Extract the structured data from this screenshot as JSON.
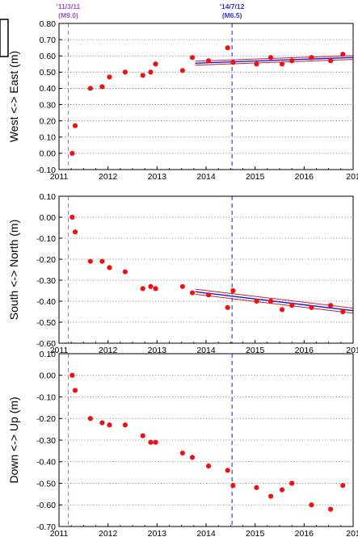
{
  "event_labels": [
    {
      "date": "'11/3/11",
      "mag": "(M9.0)",
      "color": "#9955cc",
      "x": 2011.19
    },
    {
      "date": "'14/7/12",
      "mag": "(M6.5)",
      "color": "#3333cc",
      "x": 2014.53
    }
  ],
  "colors": {
    "point": "#ee1111",
    "trend": "#1a1ad0",
    "trend_bound": "#cc1a3a",
    "event2": "#3344dd",
    "event1": "#bb55cc"
  },
  "chart_data": [
    {
      "type": "scatter",
      "ylabel": "West <-> East (m)",
      "ylim": [
        -0.1,
        0.8
      ],
      "yticks": [
        "-0.10",
        "0.00",
        "0.10",
        "0.20",
        "0.30",
        "0.40",
        "0.50",
        "0.60",
        "0.70",
        "0.80"
      ],
      "xlim": [
        2011,
        2017
      ],
      "xticks": [
        "2011",
        "2012",
        "2013",
        "2014",
        "2015",
        "2016",
        "201"
      ],
      "grid": "dotted",
      "points": {
        "x": [
          2011.27,
          2011.33,
          2011.64,
          2011.88,
          2012.03,
          2012.35,
          2012.71,
          2012.87,
          2012.97,
          2013.52,
          2013.72,
          2014.05,
          2014.44,
          2014.55,
          2015.03,
          2015.32,
          2015.55,
          2015.75,
          2016.15,
          2016.54,
          2016.79
        ],
        "y": [
          0.0,
          0.17,
          0.4,
          0.41,
          0.47,
          0.5,
          0.48,
          0.5,
          0.55,
          0.51,
          0.59,
          0.57,
          0.65,
          0.56,
          0.55,
          0.59,
          0.55,
          0.57,
          0.59,
          0.57,
          0.61
        ]
      },
      "trend": {
        "x": [
          2013.78,
          2017.0
        ],
        "y": [
          0.555,
          0.59
        ],
        "band": 0.012
      }
    },
    {
      "type": "scatter",
      "ylabel": "South <-> North (m)",
      "ylim": [
        -0.6,
        0.1
      ],
      "yticks": [
        "-0.60",
        "-0.50",
        "-0.40",
        "-0.30",
        "-0.20",
        "-0.10",
        "0.00",
        "0.10"
      ],
      "xlim": [
        2011,
        2017
      ],
      "xticks": [
        "2011",
        "2012",
        "2013",
        "2014",
        "2015",
        "2016",
        "201"
      ],
      "grid": "dotted",
      "points": {
        "x": [
          2011.27,
          2011.33,
          2011.64,
          2011.88,
          2012.03,
          2012.35,
          2012.71,
          2012.87,
          2012.97,
          2013.52,
          2013.72,
          2014.05,
          2014.44,
          2014.55,
          2015.03,
          2015.32,
          2015.55,
          2015.75,
          2016.15,
          2016.54,
          2016.79
        ],
        "y": [
          0.0,
          -0.07,
          -0.21,
          -0.21,
          -0.24,
          -0.26,
          -0.34,
          -0.33,
          -0.34,
          -0.33,
          -0.36,
          -0.37,
          -0.43,
          -0.35,
          -0.4,
          -0.4,
          -0.44,
          -0.42,
          -0.43,
          -0.42,
          -0.45
        ]
      },
      "trend": {
        "x": [
          2013.78,
          2017.0
        ],
        "y": [
          -0.355,
          -0.445
        ],
        "band": 0.012
      }
    },
    {
      "type": "scatter",
      "ylabel": "Down <-> Up (m)",
      "ylim": [
        -0.7,
        0.1
      ],
      "yticks": [
        "-0.70",
        "-0.60",
        "-0.50",
        "-0.40",
        "-0.30",
        "-0.20",
        "-0.10",
        "0.00",
        "0.10"
      ],
      "xlim": [
        2011,
        2017
      ],
      "xticks": [
        "2011",
        "2012",
        "2013",
        "2014",
        "2015",
        "2016",
        "201"
      ],
      "grid": "dotted",
      "points": {
        "x": [
          2011.27,
          2011.33,
          2011.64,
          2011.88,
          2012.03,
          2012.35,
          2012.71,
          2012.87,
          2012.97,
          2013.52,
          2013.72,
          2014.05,
          2014.44,
          2014.55,
          2015.03,
          2015.32,
          2015.55,
          2015.75,
          2016.15,
          2016.54,
          2016.79
        ],
        "y": [
          0.0,
          -0.07,
          -0.2,
          -0.22,
          -0.23,
          -0.23,
          -0.28,
          -0.31,
          -0.31,
          -0.36,
          -0.38,
          -0.42,
          -0.44,
          -0.51,
          -0.52,
          -0.56,
          -0.53,
          -0.5,
          -0.6,
          -0.62,
          -0.51
        ]
      }
    }
  ]
}
